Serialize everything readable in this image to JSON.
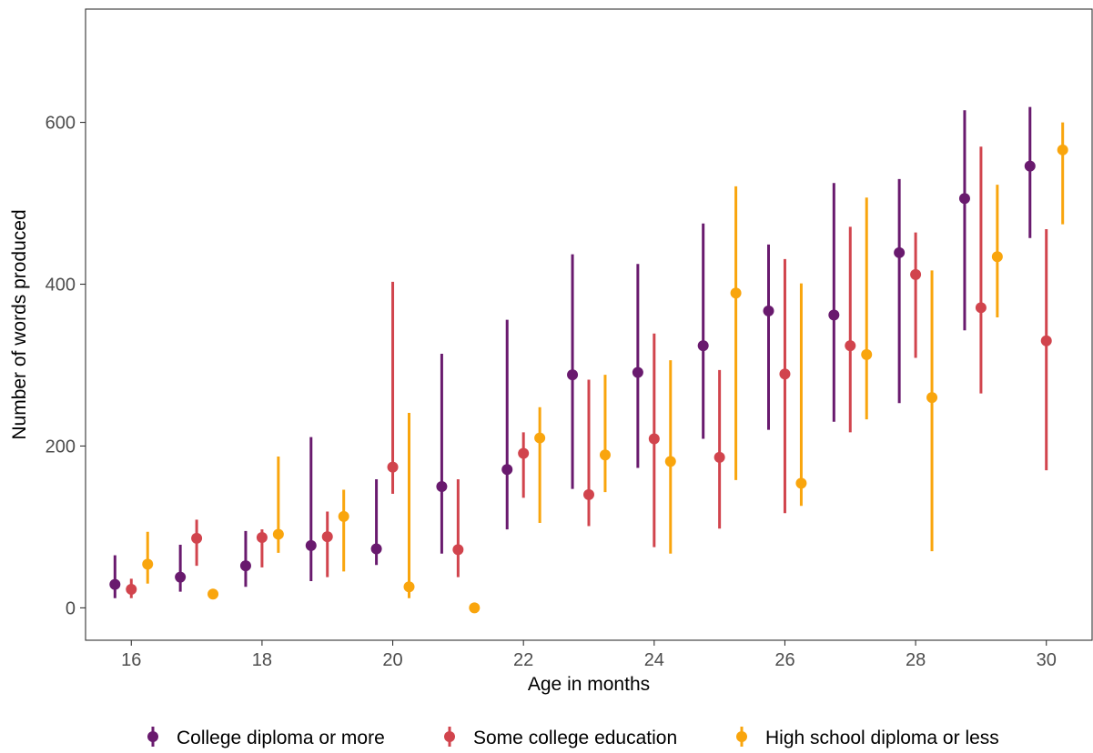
{
  "chart_data": {
    "type": "scatter",
    "subtype": "point-range",
    "xlabel": "Age in months",
    "ylabel": "Number of words produced",
    "xlim": [
      15.3,
      30.7
    ],
    "ylim": [
      -40,
      740
    ],
    "x_ticks": [
      16,
      18,
      20,
      22,
      24,
      26,
      28,
      30
    ],
    "y_ticks": [
      0,
      200,
      400,
      600
    ],
    "grid": false,
    "legend_position": "bottom",
    "x": [
      16,
      17,
      18,
      19,
      20,
      21,
      22,
      23,
      24,
      25,
      26,
      27,
      28,
      29,
      30
    ],
    "series": [
      {
        "name": "College diploma or more",
        "color": "#691A6E",
        "offset": -0.25,
        "values": [
          29,
          38,
          52,
          77,
          73,
          150,
          171,
          288,
          291,
          324,
          367,
          362,
          439,
          506,
          546
        ],
        "lower": [
          12,
          20,
          26,
          33,
          53,
          67,
          97,
          147,
          173,
          209,
          220,
          230,
          253,
          343,
          457
        ],
        "upper": [
          65,
          78,
          95,
          211,
          159,
          314,
          356,
          437,
          425,
          475,
          449,
          525,
          530,
          615,
          619
        ]
      },
      {
        "name": "Some college education",
        "color": "#D1444D",
        "offset": 0,
        "values": [
          23,
          86,
          87,
          88,
          174,
          72,
          191,
          140,
          209,
          186,
          289,
          324,
          412,
          371,
          330
        ],
        "lower": [
          12,
          52,
          50,
          38,
          141,
          38,
          136,
          101,
          75,
          98,
          117,
          217,
          309,
          265,
          170
        ],
        "upper": [
          36,
          109,
          97,
          119,
          403,
          159,
          217,
          282,
          339,
          294,
          431,
          471,
          464,
          570,
          468
        ]
      },
      {
        "name": "High school diploma or less",
        "color": "#F9A50D",
        "offset": 0.25,
        "values": [
          54,
          17,
          91,
          113,
          26,
          0,
          210,
          189,
          181,
          389,
          154,
          313,
          260,
          434,
          566
        ],
        "lower": [
          30,
          17,
          68,
          45,
          12,
          0,
          105,
          143,
          67,
          158,
          126,
          233,
          70,
          359,
          474
        ],
        "upper": [
          94,
          17,
          187,
          146,
          241,
          0,
          248,
          288,
          306,
          521,
          401,
          507,
          417,
          523,
          600
        ]
      }
    ]
  }
}
